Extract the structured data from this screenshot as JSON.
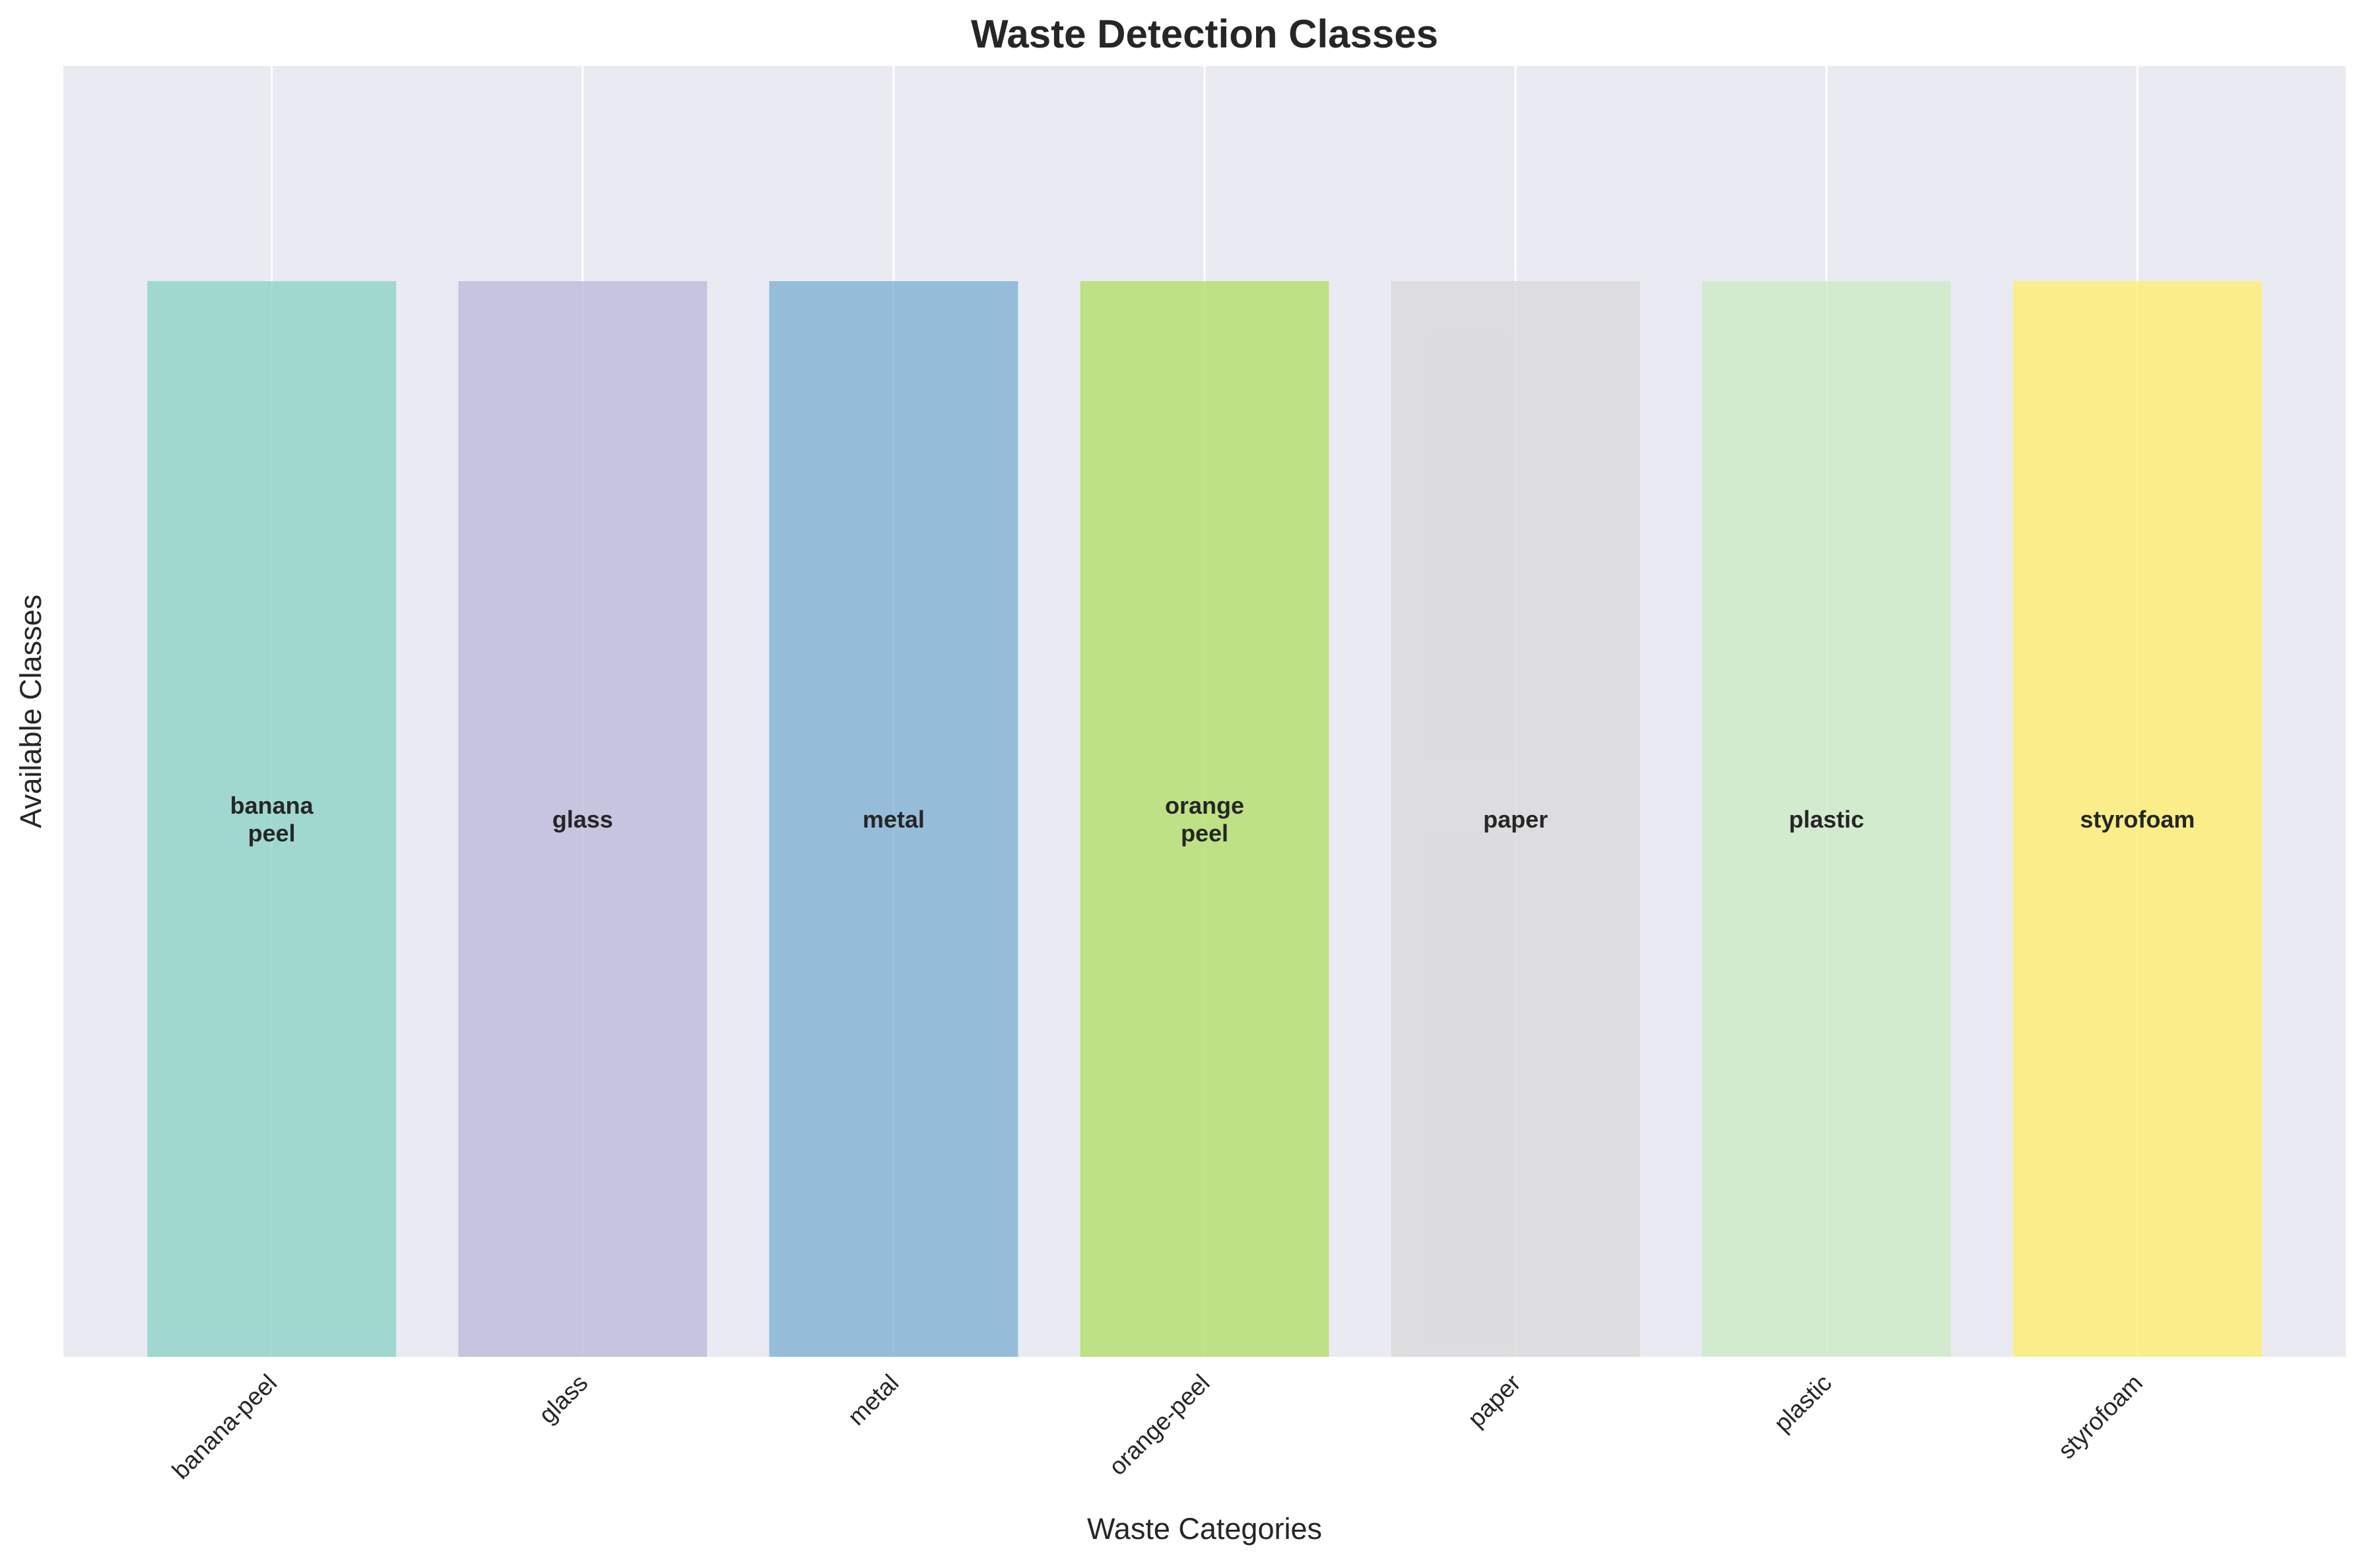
{
  "chart_data": {
    "type": "bar",
    "title": "Waste Detection Classes",
    "xlabel": "Waste Categories",
    "ylabel": "Available Classes",
    "categories": [
      "banana-peel",
      "glass",
      "metal",
      "orange-peel",
      "paper",
      "plastic",
      "styrofoam"
    ],
    "values": [
      1,
      1,
      1,
      1,
      1,
      1,
      1
    ],
    "bar_labels": [
      [
        "banana",
        "peel"
      ],
      [
        "glass"
      ],
      [
        "metal"
      ],
      [
        "orange",
        "peel"
      ],
      [
        "paper"
      ],
      [
        "plastic"
      ],
      [
        "styrofoam"
      ]
    ],
    "ylim": [
      0,
      1.2
    ],
    "grid": true,
    "legend": "none",
    "y_tick_labels": "hidden",
    "colors": [
      "#8dd3c7",
      "#bebada",
      "#80b1d3",
      "#b3de69",
      "#d9d9d9",
      "#ccebc5",
      "#ffed6f"
    ],
    "plot_background": "#eaeaf2",
    "grid_color": "#ffffff",
    "text_color": "#262626"
  }
}
